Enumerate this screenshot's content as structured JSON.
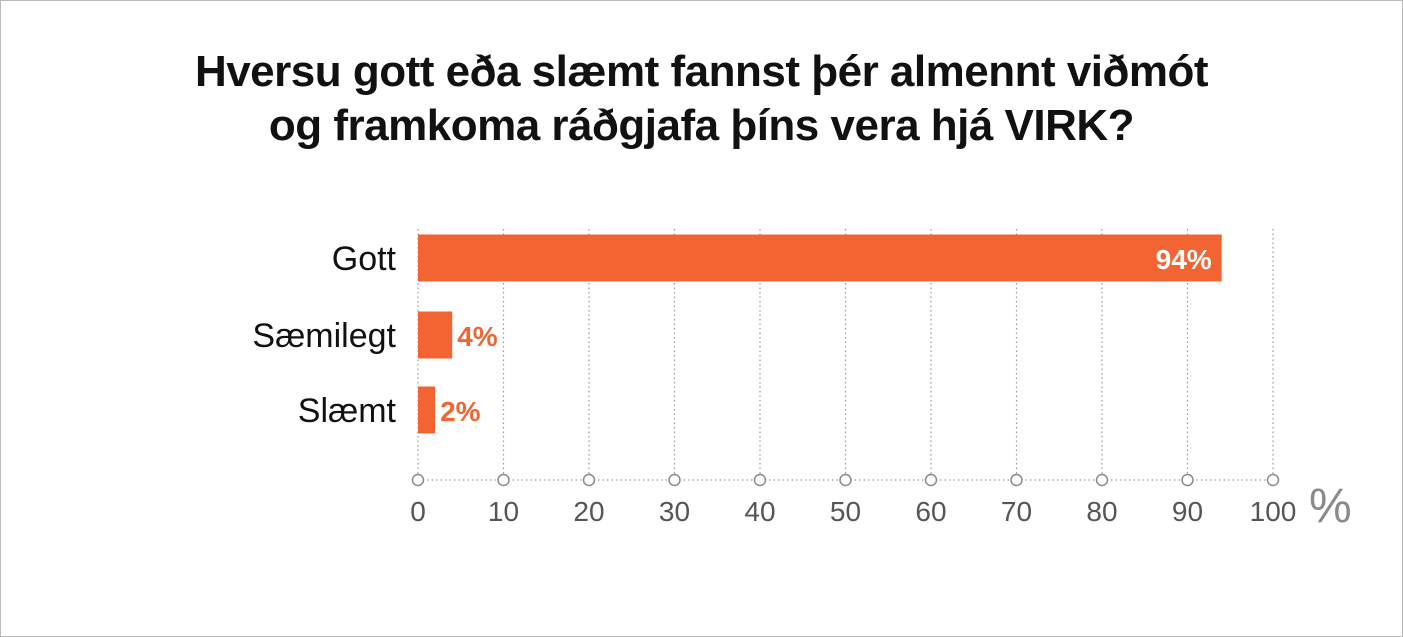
{
  "title_lines": [
    "Hversu gott eða slæmt fannst þér almennt viðmót",
    "og framkoma ráðgjafa þíns vera hjá VIRK?"
  ],
  "colors": {
    "bar": "#f26532",
    "inside_label": "#ffffff",
    "outside_label": "#f26532",
    "grid": "#9a9a9a",
    "tick_text": "#555555"
  },
  "chart_data": {
    "type": "bar",
    "orientation": "horizontal",
    "title": "Hversu gott eða slæmt fannst þér almennt viðmót og framkoma ráðgjafa þíns vera hjá VIRK?",
    "categories": [
      "Gott",
      "Sæmilegt",
      "Slæmt"
    ],
    "values": [
      94,
      4,
      2
    ],
    "value_labels": [
      "94%",
      "4%",
      "2%"
    ],
    "xlim": [
      0,
      100
    ],
    "xticks": [
      0,
      10,
      20,
      30,
      40,
      50,
      60,
      70,
      80,
      90,
      100
    ],
    "xtick_labels": [
      "0",
      "10",
      "20",
      "30",
      "40",
      "50",
      "60",
      "70",
      "80",
      "90",
      "100"
    ],
    "x_unit": "%",
    "grid": "vertical dotted"
  }
}
